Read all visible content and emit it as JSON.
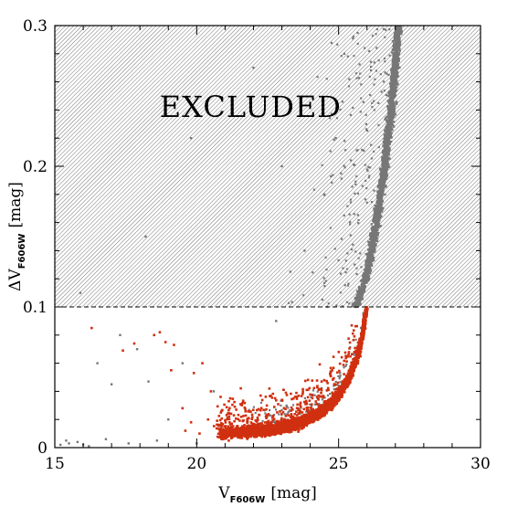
{
  "chart_data": {
    "type": "scatter",
    "title": "",
    "xlabel": {
      "prefix": "V",
      "sub": "F606W",
      "suffix": "[mag]"
    },
    "ylabel": {
      "prefix": "ΔV",
      "sub": "F606W",
      "suffix": "[mag]"
    },
    "xlim": [
      15,
      30
    ],
    "ylim": [
      0,
      0.3
    ],
    "xticks": [
      15,
      20,
      25,
      30
    ],
    "xtick_labels": [
      "15",
      "20",
      "25",
      "30"
    ],
    "yticks": [
      0,
      0.1,
      0.2,
      0.3
    ],
    "ytick_labels": [
      "0",
      "0.1",
      "0.2",
      "0.3"
    ],
    "grid": false,
    "threshold": 0.1,
    "excluded_region": {
      "y_min": 0.1,
      "y_max": 0.3,
      "hatch": "diagonal",
      "label": "EXCLUDED"
    },
    "series": [
      {
        "color": "#777777",
        "description_points": [
          [
            15.2,
            0.002
          ],
          [
            15.4,
            0.005
          ],
          [
            15.5,
            0.003
          ],
          [
            15.8,
            0.004
          ],
          [
            16.0,
            0.002
          ],
          [
            16.2,
            0.001
          ],
          [
            16.5,
            0.06
          ],
          [
            16.8,
            0.006
          ],
          [
            17.0,
            0.045
          ],
          [
            17.3,
            0.08
          ],
          [
            17.6,
            0.003
          ],
          [
            17.9,
            0.07
          ],
          [
            18.3,
            0.047
          ],
          [
            18.6,
            0.005
          ],
          [
            19.0,
            0.02
          ],
          [
            19.5,
            0.06
          ],
          [
            20.0,
            0.003
          ],
          [
            15.9,
            0.11
          ],
          [
            18.2,
            0.15
          ],
          [
            19.8,
            0.22
          ],
          [
            22.0,
            0.27
          ],
          [
            23.3,
            0.125
          ],
          [
            23.8,
            0.14
          ],
          [
            24.5,
            0.18
          ],
          [
            20.6,
            0.04
          ],
          [
            21.2,
            0.01
          ],
          [
            22.8,
            0.09
          ],
          [
            24.9,
            0.22
          ],
          [
            25.2,
            0.28
          ],
          [
            23.0,
            0.2
          ]
        ],
        "locus": {
          "x_at": [
            25.6,
            25.95,
            26.2,
            26.45,
            26.65,
            26.85,
            27.0,
            27.1
          ],
          "y_at": [
            0.1,
            0.12,
            0.145,
            0.175,
            0.205,
            0.24,
            0.27,
            0.3
          ]
        }
      },
      {
        "color": "#d03010",
        "description_points": [
          [
            16.3,
            0.085
          ],
          [
            17.4,
            0.069
          ],
          [
            17.8,
            0.074
          ],
          [
            18.5,
            0.08
          ],
          [
            18.7,
            0.082
          ],
          [
            18.9,
            0.075
          ],
          [
            19.1,
            0.055
          ],
          [
            19.5,
            0.028
          ],
          [
            19.9,
            0.053
          ],
          [
            19.2,
            0.073
          ],
          [
            20.5,
            0.04
          ],
          [
            20.2,
            0.06
          ],
          [
            19.6,
            0.012
          ],
          [
            19.8,
            0.018
          ],
          [
            20.1,
            0.01
          ],
          [
            20.4,
            0.02
          ]
        ],
        "locus": {
          "x_at": [
            20.8,
            21.5,
            22.2,
            22.9,
            23.5,
            24.0,
            24.4,
            24.8,
            25.1,
            25.4,
            25.65,
            25.85,
            26.0
          ],
          "y_at": [
            0.009,
            0.01,
            0.011,
            0.013,
            0.016,
            0.02,
            0.025,
            0.032,
            0.04,
            0.05,
            0.063,
            0.08,
            0.1
          ]
        }
      }
    ]
  }
}
